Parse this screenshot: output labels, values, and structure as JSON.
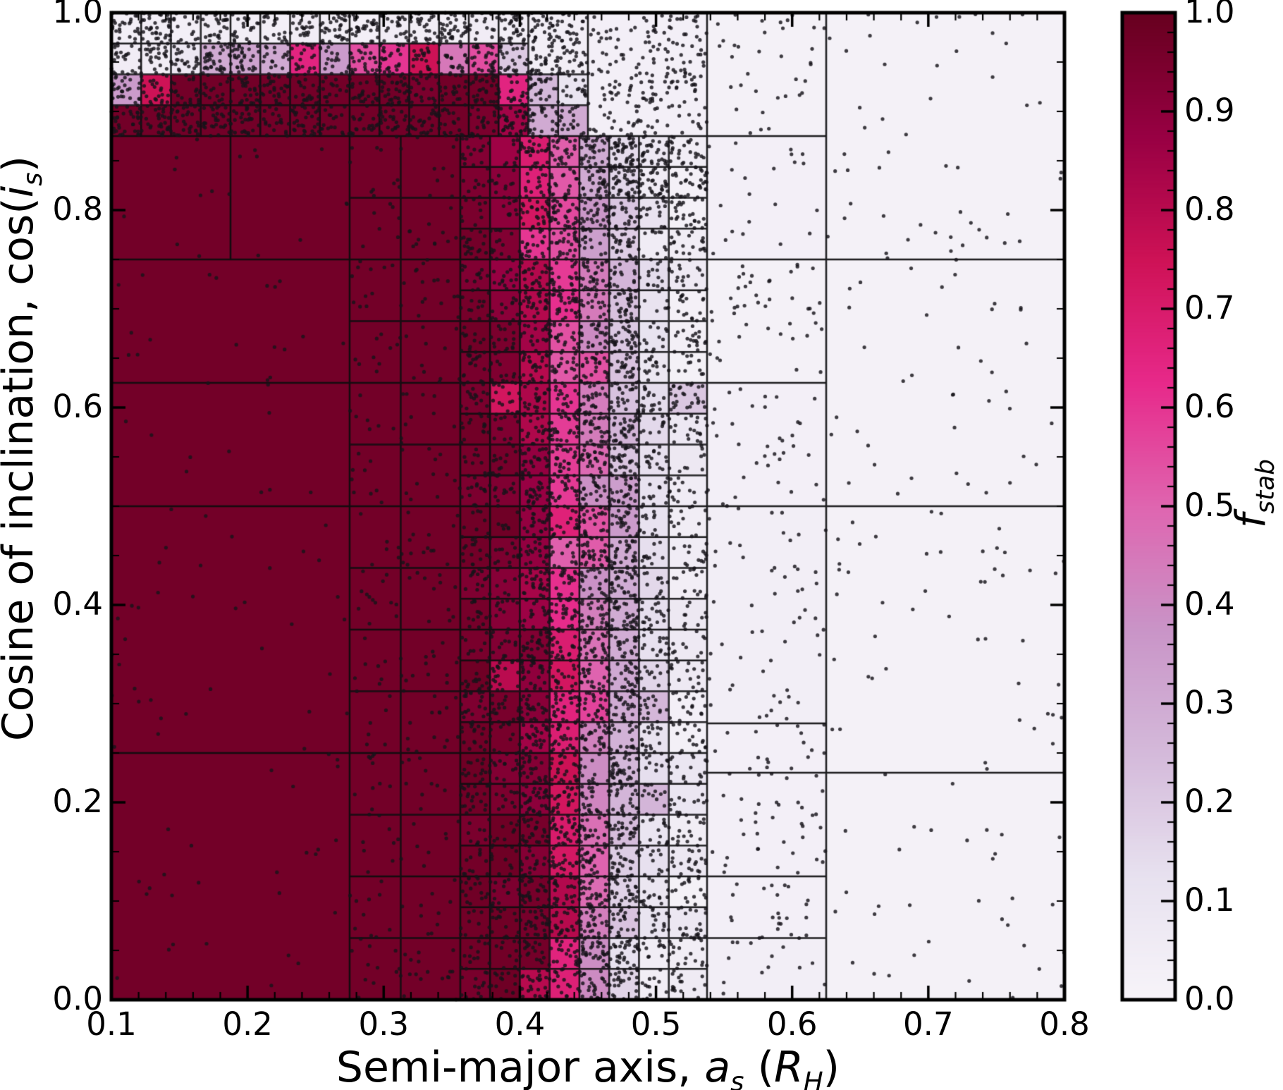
{
  "figure": {
    "xlabel": {
      "prefix": "Semi-major axis, ",
      "var": "a",
      "varsub": "s",
      "mid": " (",
      "unitvar": "R",
      "unitsub": "H",
      "suffix": ")"
    },
    "ylabel": {
      "prefix": "Cosine of inclination, ",
      "fn": "cos(",
      "var": "i",
      "sub": "s",
      "suffix": ")"
    },
    "x_ticks": [
      {
        "v": 0.1,
        "label": "0.1"
      },
      {
        "v": 0.2,
        "label": "0.2"
      },
      {
        "v": 0.3,
        "label": "0.3"
      },
      {
        "v": 0.4,
        "label": "0.4"
      },
      {
        "v": 0.5,
        "label": "0.5"
      },
      {
        "v": 0.6,
        "label": "0.6"
      },
      {
        "v": 0.7,
        "label": "0.7"
      },
      {
        "v": 0.8,
        "label": "0.8"
      }
    ],
    "y_ticks": [
      {
        "v": 0.0,
        "label": "0.0"
      },
      {
        "v": 0.2,
        "label": "0.2"
      },
      {
        "v": 0.4,
        "label": "0.4"
      },
      {
        "v": 0.6,
        "label": "0.6"
      },
      {
        "v": 0.8,
        "label": "0.8"
      },
      {
        "v": 1.0,
        "label": "1.0"
      }
    ],
    "colorbar": {
      "label": {
        "var": "f",
        "sub": "stab"
      },
      "ticks": [
        {
          "v": 0.0,
          "label": "0.0"
        },
        {
          "v": 0.1,
          "label": "0.1"
        },
        {
          "v": 0.2,
          "label": "0.2"
        },
        {
          "v": 0.3,
          "label": "0.3"
        },
        {
          "v": 0.4,
          "label": "0.4"
        },
        {
          "v": 0.5,
          "label": "0.5"
        },
        {
          "v": 0.6,
          "label": "0.6"
        },
        {
          "v": 0.7,
          "label": "0.7"
        },
        {
          "v": 0.8,
          "label": "0.8"
        },
        {
          "v": 0.9,
          "label": "0.9"
        },
        {
          "v": 1.0,
          "label": "1.0"
        }
      ]
    }
  },
  "chart_data": {
    "type": "heatmap",
    "title": "",
    "xlabel": "Semi-major axis, a_s (R_H)",
    "ylabel": "Cosine of inclination, cos(i_s)",
    "colorbar_label": "f_stab",
    "xlim": [
      0.1,
      0.8
    ],
    "ylim": [
      0.0,
      1.0
    ],
    "clim": [
      0.0,
      1.0
    ],
    "x_minor_step": 0.02,
    "y_minor_step": 0.05,
    "cbar_minor_step": 0.02,
    "legend": "colorbar right, f_stab from 0.0 (white) to 1.0 (dark maroon), PuRd colormap",
    "colormap": [
      [
        0.0,
        "#f7f4f9"
      ],
      [
        0.125,
        "#e7e1ef"
      ],
      [
        0.25,
        "#d4b9da"
      ],
      [
        0.375,
        "#c994c7"
      ],
      [
        0.5,
        "#df65b0"
      ],
      [
        0.625,
        "#e7298a"
      ],
      [
        0.75,
        "#ce1256"
      ],
      [
        0.875,
        "#980043"
      ],
      [
        1.0,
        "#67001f"
      ]
    ],
    "background_value": 0.02,
    "left_cells": [
      [
        0.1,
        0.275,
        0.0,
        0.25,
        0.97
      ],
      [
        0.1,
        0.275,
        0.25,
        0.5,
        0.97
      ],
      [
        0.1,
        0.275,
        0.5,
        0.625,
        0.97
      ],
      [
        0.1,
        0.275,
        0.625,
        0.75,
        0.97
      ],
      [
        0.1,
        0.1875,
        0.75,
        0.875,
        0.97
      ],
      [
        0.1875,
        0.275,
        0.75,
        0.875,
        0.97
      ]
    ],
    "medium_grid": {
      "x_edges": [
        0.275,
        0.3125,
        0.35625
      ],
      "y0": 0.0,
      "y1": 0.875,
      "row_h": 0.0625,
      "value": 0.97
    },
    "transition": {
      "x_edges": [
        0.35625,
        0.378125,
        0.4,
        0.421875,
        0.44375,
        0.465625,
        0.4875,
        0.509375,
        0.5375
      ],
      "y0": 0.0,
      "row_h": 0.0625,
      "rows": [
        [
          0.97,
          0.97,
          0.95,
          0.65,
          0.4,
          0.15,
          0.07,
          0.04
        ],
        [
          0.97,
          0.97,
          0.95,
          0.8,
          0.45,
          0.2,
          0.09,
          0.05
        ],
        [
          0.97,
          0.97,
          0.93,
          0.7,
          0.5,
          0.22,
          0.1,
          0.05
        ],
        [
          0.97,
          0.95,
          0.9,
          0.75,
          0.42,
          0.25,
          0.12,
          0.06
        ],
        [
          0.97,
          0.97,
          0.88,
          0.66,
          0.55,
          0.28,
          0.1,
          0.06
        ],
        [
          0.97,
          0.95,
          0.92,
          0.72,
          0.48,
          0.3,
          0.14,
          0.07
        ],
        [
          0.97,
          0.94,
          0.85,
          0.62,
          0.4,
          0.26,
          0.12,
          0.06
        ],
        [
          0.97,
          0.95,
          0.9,
          0.65,
          0.52,
          0.32,
          0.13,
          0.07
        ],
        [
          0.97,
          0.94,
          0.87,
          0.58,
          0.35,
          0.22,
          0.11,
          0.06
        ],
        [
          0.95,
          0.92,
          0.8,
          0.6,
          0.45,
          0.25,
          0.12,
          0.06
        ],
        [
          0.97,
          0.94,
          0.82,
          0.55,
          0.38,
          0.2,
          0.1,
          0.05
        ],
        [
          0.95,
          0.91,
          0.78,
          0.6,
          0.42,
          0.24,
          0.11,
          0.06
        ],
        [
          0.97,
          0.9,
          0.75,
          0.55,
          0.35,
          0.18,
          0.09,
          0.05
        ],
        [
          0.95,
          0.88,
          0.7,
          0.5,
          0.3,
          0.15,
          0.08,
          0.04
        ]
      ]
    },
    "top_band": {
      "x_edges": [
        0.1,
        0.121875,
        0.14375,
        0.165625,
        0.1875,
        0.209375,
        0.23125,
        0.253125,
        0.275,
        0.296875,
        0.31875,
        0.340625,
        0.3625,
        0.384375,
        0.40625,
        0.428125,
        0.45
      ],
      "rows": [
        {
          "y0": 0.875,
          "y1": 0.90625,
          "values": [
            0.97,
            0.97,
            0.97,
            0.97,
            0.97,
            0.97,
            0.97,
            0.97,
            0.97,
            0.97,
            0.97,
            0.97,
            0.95,
            0.85,
            0.3,
            0.3
          ]
        },
        {
          "y0": 0.90625,
          "y1": 0.9375,
          "values": [
            0.35,
            0.75,
            0.97,
            0.97,
            0.97,
            0.97,
            0.97,
            0.97,
            0.97,
            0.97,
            0.95,
            0.97,
            0.97,
            0.65,
            0.25,
            0.1
          ]
        },
        {
          "y0": 0.9375,
          "y1": 0.96875,
          "values": [
            0.05,
            0.05,
            0.08,
            0.3,
            0.32,
            0.3,
            0.65,
            0.35,
            0.55,
            0.6,
            0.75,
            0.45,
            0.55,
            0.2
          ]
        },
        {
          "y0": 0.96875,
          "y1": 1.0,
          "values": [
            0.03,
            0.04,
            0.03,
            0.05,
            0.04,
            0.03,
            0.05,
            0.04,
            0.03,
            0.05,
            0.04,
            0.03,
            0.05,
            0.04
          ]
        }
      ]
    },
    "right_cells": [
      [
        0.40625,
        0.45,
        0.9375,
        1.0,
        0.04
      ],
      [
        0.45,
        0.5375,
        0.875,
        1.0,
        0.03
      ],
      [
        0.5375,
        0.625,
        0.875,
        1.0,
        0.02
      ],
      [
        0.5375,
        0.625,
        0.75,
        0.875,
        0.03
      ],
      [
        0.625,
        0.8,
        0.75,
        1.0,
        0.02
      ],
      [
        0.5375,
        0.625,
        0.625,
        0.75,
        0.02
      ],
      [
        0.5375,
        0.625,
        0.5,
        0.625,
        0.03
      ],
      [
        0.625,
        0.8,
        0.5,
        0.75,
        0.02
      ],
      [
        0.5375,
        0.625,
        0.28,
        0.5,
        0.04
      ],
      [
        0.625,
        0.8,
        0.23,
        0.5,
        0.02
      ],
      [
        0.5375,
        0.625,
        0.23,
        0.28,
        0.03
      ],
      [
        0.5375,
        0.625,
        0.125,
        0.23,
        0.03
      ],
      [
        0.5375,
        0.625,
        0.0625,
        0.125,
        0.03
      ],
      [
        0.5375,
        0.625,
        0.0,
        0.0625,
        0.04
      ],
      [
        0.625,
        0.8,
        0.0,
        0.23,
        0.02
      ]
    ],
    "scatter_regions": [
      [
        0.1,
        0.45,
        0.875,
        1.0,
        1700
      ],
      [
        0.45,
        0.5375,
        0.8125,
        1.0,
        300
      ],
      [
        0.1,
        0.275,
        0.0,
        0.875,
        110
      ],
      [
        0.275,
        0.35625,
        0.0,
        0.875,
        300
      ],
      [
        0.35625,
        0.4,
        0.0,
        0.875,
        800
      ],
      [
        0.4,
        0.44375,
        0.0,
        0.875,
        1500
      ],
      [
        0.44375,
        0.4875,
        0.0,
        0.875,
        1700
      ],
      [
        0.4875,
        0.5375,
        0.0,
        0.875,
        900
      ],
      [
        0.5375,
        0.625,
        0.0,
        1.0,
        280
      ],
      [
        0.625,
        0.8,
        0.0,
        1.0,
        170
      ]
    ],
    "scatter_seed": 77,
    "dot_radius": 2.6,
    "dot_color": "rgba(22,20,26,0.82)",
    "cell_stroke": "rgba(12,12,14,0.9)",
    "frame_color": "#000000"
  }
}
